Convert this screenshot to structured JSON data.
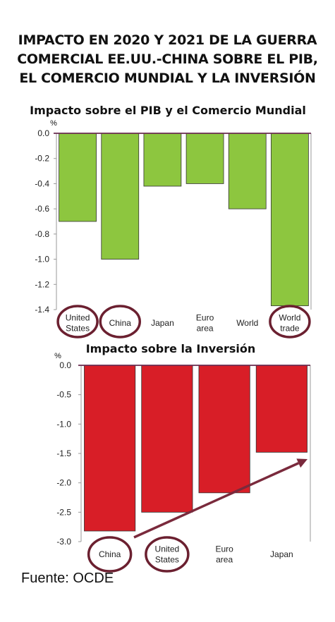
{
  "title_lines": [
    "IMPACTO EN 2020 Y 2021 DE LA GUERRA",
    "COMERCIAL EE.UU.-CHINA SOBRE EL PIB,",
    "EL COMERCIO MUNDIAL Y LA INVERSIÓN"
  ],
  "source": "Fuente: OCDE",
  "chart_data": [
    {
      "type": "bar",
      "title": "Impacto sobre el PIB y el Comercio Mundial",
      "ylabel": "%",
      "categories": [
        [
          "United",
          "States"
        ],
        [
          "China"
        ],
        [
          "Japan"
        ],
        [
          "Euro",
          "area"
        ],
        [
          "World"
        ],
        [
          "World",
          "trade"
        ]
      ],
      "values": [
        -0.7,
        -1.0,
        -0.42,
        -0.4,
        -0.6,
        -1.37
      ],
      "ylim": [
        -1.4,
        0
      ],
      "yticks": [
        0.0,
        -0.2,
        -0.4,
        -0.6,
        -0.8,
        -1.0,
        -1.2,
        -1.4
      ],
      "ytick_labels": [
        "0.0",
        "-0.2",
        "-0.4",
        "-0.6",
        "-0.8",
        "-1.0",
        "-1.2",
        "-1.4"
      ],
      "bar_color": "#8dc63f",
      "highlighted": [
        0,
        1,
        5
      ],
      "highlight_color": "#6b2030"
    },
    {
      "type": "bar",
      "title": "Impacto sobre la Inversión",
      "ylabel": "%",
      "categories": [
        [
          "China"
        ],
        [
          "United",
          "States"
        ],
        [
          "Euro",
          "area"
        ],
        [
          "Japan"
        ]
      ],
      "values": [
        -2.82,
        -2.5,
        -2.17,
        -1.48
      ],
      "ylim": [
        -3.0,
        0
      ],
      "yticks": [
        0.0,
        -0.5,
        -1.0,
        -1.5,
        -2.0,
        -2.5,
        -3.0
      ],
      "ytick_labels": [
        "0.0",
        "-0.5",
        "-1.0",
        "-1.5",
        "-2.0",
        "-2.5",
        "-3.0"
      ],
      "bar_color": "#d81e27",
      "highlighted": [
        0,
        1
      ],
      "highlight_color": "#6b2030",
      "arrow": "trend-up-right",
      "arrow_color": "#7a2a3c"
    }
  ]
}
